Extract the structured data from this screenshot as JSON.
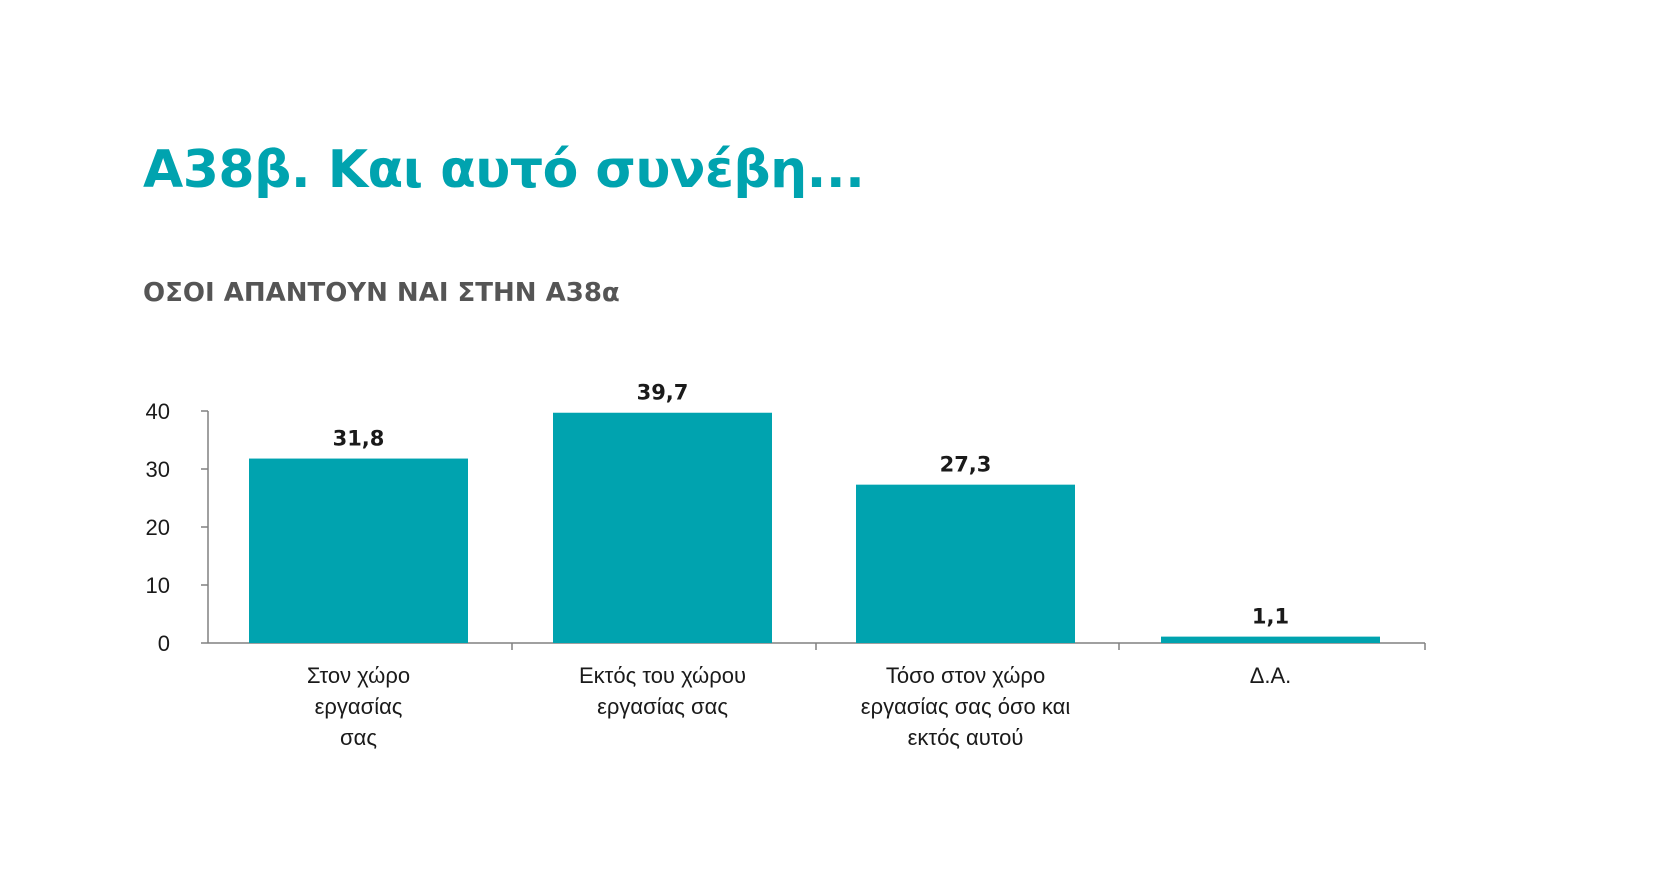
{
  "header": {
    "title": "Α38β. Και αυτό συνέβη...",
    "subtitle": "ΟΣΟΙ ΑΠΑΝΤΟΥΝ ΝΑΙ ΣΤΗΝ Α38α"
  },
  "chart_data": {
    "type": "bar",
    "categories": [
      [
        "Στον χώρο",
        "εργασίας",
        "σας"
      ],
      [
        "Εκτός του χώρου",
        "εργασίας σας"
      ],
      [
        "Τόσο στον χώρο",
        "εργασίας σας όσο και",
        "εκτός αυτού"
      ],
      [
        "Δ.Α."
      ]
    ],
    "values": [
      31.8,
      39.7,
      27.3,
      1.1
    ],
    "value_labels": [
      "31,8",
      "39,7",
      "27,3",
      "1,1"
    ],
    "yticks": [
      0,
      10,
      20,
      30,
      40
    ],
    "ylim": [
      0,
      40
    ],
    "grid": false,
    "legend": "none",
    "colors": {
      "bar": "#00a3af",
      "title": "#00a3af",
      "subtitle": "#555555",
      "axis": "#808080"
    }
  }
}
